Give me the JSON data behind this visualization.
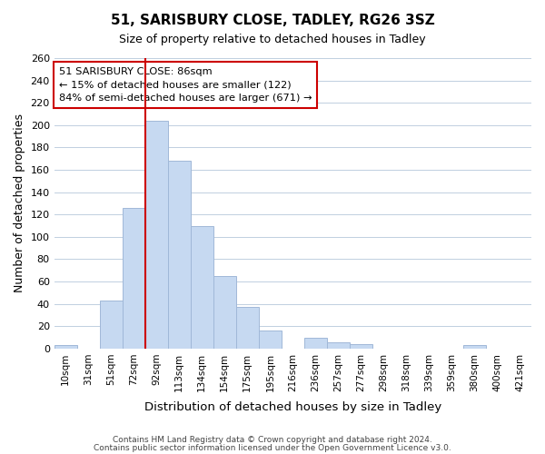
{
  "title": "51, SARISBURY CLOSE, TADLEY, RG26 3SZ",
  "subtitle": "Size of property relative to detached houses in Tadley",
  "xlabel": "Distribution of detached houses by size in Tadley",
  "ylabel": "Number of detached properties",
  "categories": [
    "10sqm",
    "31sqm",
    "51sqm",
    "72sqm",
    "92sqm",
    "113sqm",
    "134sqm",
    "154sqm",
    "175sqm",
    "195sqm",
    "216sqm",
    "236sqm",
    "257sqm",
    "277sqm",
    "298sqm",
    "318sqm",
    "339sqm",
    "359sqm",
    "380sqm",
    "400sqm",
    "421sqm"
  ],
  "values": [
    3,
    0,
    43,
    126,
    204,
    168,
    110,
    65,
    37,
    16,
    0,
    10,
    6,
    4,
    0,
    0,
    0,
    0,
    3,
    0,
    0
  ],
  "bar_color": "#c6d9f1",
  "bar_edge_color": "#a0b8d8",
  "vline_x_index": 4,
  "vline_color": "#cc0000",
  "ylim": [
    0,
    260
  ],
  "yticks": [
    0,
    20,
    40,
    60,
    80,
    100,
    120,
    140,
    160,
    180,
    200,
    220,
    240,
    260
  ],
  "annotation_title": "51 SARISBURY CLOSE: 86sqm",
  "annotation_line1": "← 15% of detached houses are smaller (122)",
  "annotation_line2": "84% of semi-detached houses are larger (671) →",
  "annotation_box_color": "#ffffff",
  "annotation_box_edge": "#cc0000",
  "footer_line1": "Contains HM Land Registry data © Crown copyright and database right 2024.",
  "footer_line2": "Contains public sector information licensed under the Open Government Licence v3.0.",
  "background_color": "#ffffff",
  "grid_color": "#c0cfe0"
}
